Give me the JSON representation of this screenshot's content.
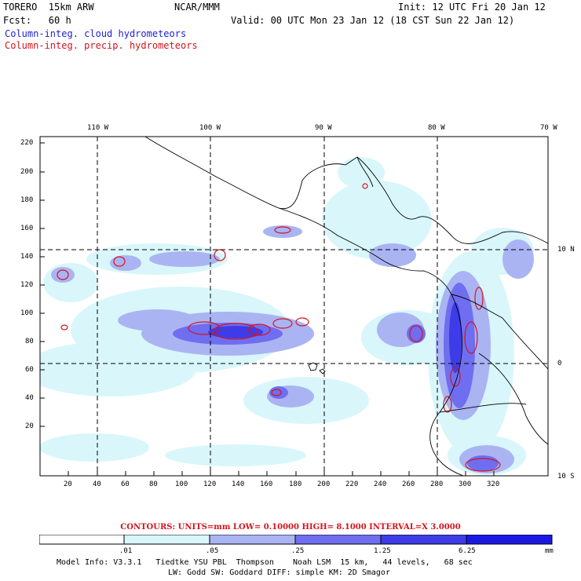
{
  "header": {
    "model": "TORERO  15km ARW",
    "org": "NCAR/MMM",
    "init": "Init: 12 UTC Fri 20 Jan 12",
    "fcst": "Fcst:   60 h",
    "valid": "Valid: 00 UTC Mon 23 Jan 12 (18 CST Sun 22 Jan 12)",
    "line_cloud": "Column-integ. cloud hydrometeors",
    "line_precip": "Column-integ. precip. hydrometeors"
  },
  "map": {
    "lon_labels": [
      "110 W",
      "100 W",
      "90 W",
      "80 W",
      "70 W"
    ],
    "lat_labels": [
      "10 N",
      "0",
      "10 S"
    ],
    "x_ticks": [
      "20",
      "40",
      "60",
      "80",
      "100",
      "120",
      "140",
      "160",
      "180",
      "200",
      "220",
      "240",
      "260",
      "280",
      "300",
      "320"
    ],
    "y_ticks": [
      "220",
      "200",
      "180",
      "160",
      "140",
      "120",
      "100",
      "80",
      "60",
      "40",
      "20"
    ]
  },
  "contours": {
    "label": "CONTOURS:  UNITS=mm  LOW= 0.10000     HIGH=  8.1000     INTERVAL=X  3.0000"
  },
  "colorbar": {
    "levels": [
      ".01",
      ".05",
      ".25",
      "1.25",
      "6.25"
    ],
    "unit": "mm",
    "colors": [
      "#ffffff",
      "#d9f6fb",
      "#aab4f3",
      "#6f6ef0",
      "#3d3ce8",
      "#1c18e4"
    ]
  },
  "footer": {
    "line1": "Model Info: V3.3.1   Tiedtke YSU PBL  Thompson    Noah LSM  15 km,   44 levels,   68 sec",
    "line2": "LW: Godd SW: Goddard DIFF: simple KM: 2D Smagor"
  }
}
